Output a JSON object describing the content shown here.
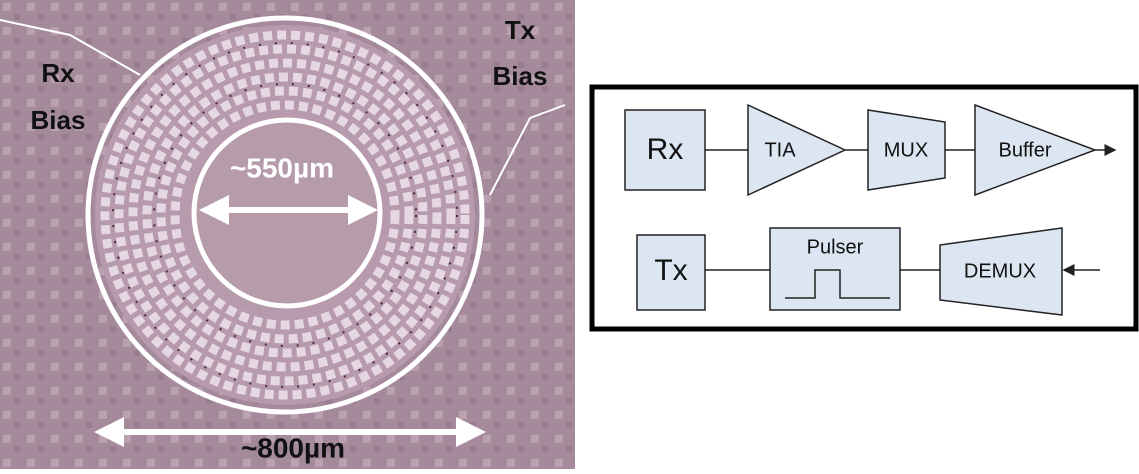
{
  "micrograph": {
    "rx_bias": [
      "Rx",
      "Bias"
    ],
    "tx_bias": [
      "Tx",
      "Bias"
    ],
    "inner_diameter": "~550µm",
    "outer_diameter": "~800µm"
  },
  "block_diagram": {
    "receive_chain": [
      "Rx",
      "TIA",
      "MUX",
      "Buffer"
    ],
    "transmit_chain": [
      "Tx",
      "Pulser",
      "DEMUX"
    ]
  }
}
